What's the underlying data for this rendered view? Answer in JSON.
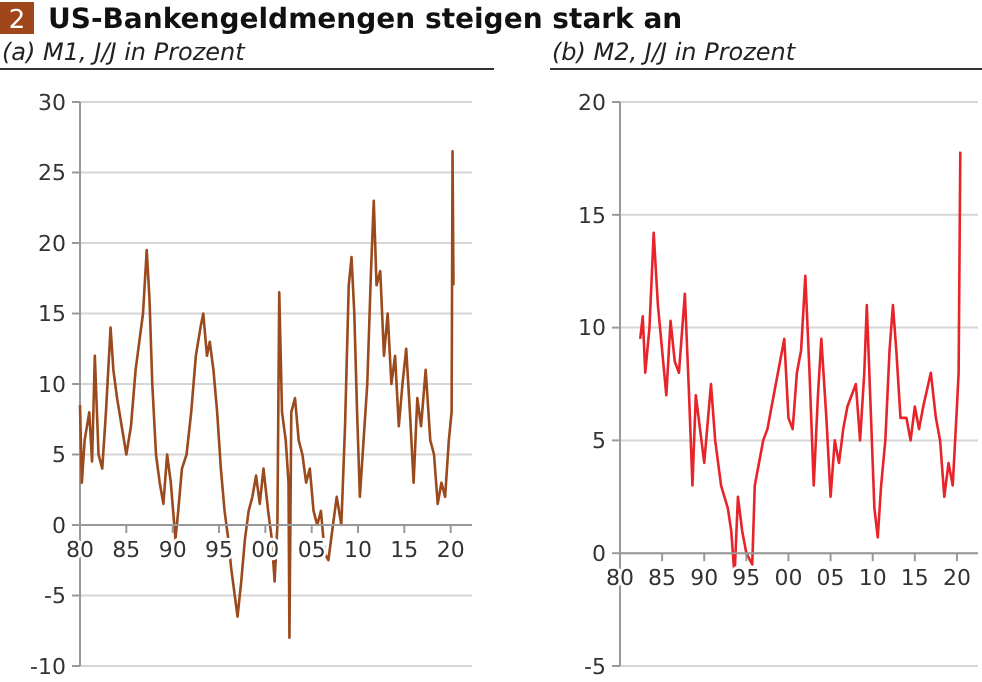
{
  "chart_data": [
    {
      "type": "line",
      "title": "US-Bankengeldmengen steigen stark an",
      "subtitle": "(a) M1, J/J in Prozent",
      "annotations": [
        "2"
      ],
      "grid": "y",
      "xlim": [
        1980,
        2022.3
      ],
      "xticks": [
        {
          "value": 1980,
          "label": "80"
        },
        {
          "value": 1985,
          "label": "85"
        },
        {
          "value": 1990,
          "label": "90"
        },
        {
          "value": 1995,
          "label": "95"
        },
        {
          "value": 2000,
          "label": "00"
        },
        {
          "value": 2005,
          "label": "05"
        },
        {
          "value": 2010,
          "label": "10"
        },
        {
          "value": 2015,
          "label": "15"
        },
        {
          "value": 2020,
          "label": "20"
        }
      ],
      "ylim": [
        -10,
        30
      ],
      "yticks": [
        -10,
        -5,
        0,
        5,
        10,
        15,
        20,
        25,
        30
      ],
      "series": [
        {
          "color": "#9a4a1c",
          "x": [
            1980,
            1980.2,
            1980.5,
            1981,
            1981.3,
            1981.6,
            1982,
            1982.4,
            1982.8,
            1983.3,
            1983.6,
            1984,
            1984.5,
            1985,
            1985.5,
            1986,
            1986.4,
            1986.8,
            1987.2,
            1987.5,
            1987.8,
            1988.2,
            1988.6,
            1989,
            1989.4,
            1989.8,
            1990.3,
            1990.6,
            1991,
            1991.5,
            1992,
            1992.5,
            1993,
            1993.3,
            1993.7,
            1994,
            1994.4,
            1994.8,
            1995.2,
            1995.6,
            1996,
            1996.3,
            1996.7,
            1997,
            1997.4,
            1997.8,
            1998.2,
            1998.6,
            1999,
            1999.4,
            1999.8,
            2000.3,
            2000.7,
            2001,
            2001.3,
            2001.5,
            2001.8,
            2002.2,
            2002.5,
            2002.6,
            2002.8,
            2003.2,
            2003.6,
            2004,
            2004.4,
            2004.8,
            2005.2,
            2005.6,
            2006,
            2006.4,
            2006.8,
            2007.3,
            2007.7,
            2008.2,
            2008.6,
            2009,
            2009.3,
            2009.6,
            2009.9,
            2010.2,
            2010.6,
            2011,
            2011.4,
            2011.7,
            2012,
            2012.4,
            2012.8,
            2013.2,
            2013.6,
            2014,
            2014.4,
            2014.8,
            2015.2,
            2015.6,
            2016,
            2016.4,
            2016.8,
            2017.3,
            2017.8,
            2018.2,
            2018.6,
            2019,
            2019.4,
            2019.8,
            2020.1,
            2020.2,
            2020.3
          ],
          "values": [
            8.5,
            3,
            6,
            8,
            4.5,
            12,
            5,
            4,
            8,
            14,
            11,
            9,
            7,
            5,
            7,
            11,
            13,
            15,
            19.5,
            16,
            10,
            5,
            3,
            1.5,
            5,
            3,
            -1,
            1,
            4,
            5,
            8,
            12,
            14,
            15,
            12,
            13,
            11,
            8,
            4,
            1,
            -1,
            -3,
            -5,
            -6.5,
            -4,
            -1,
            1,
            2,
            3.5,
            1.5,
            4,
            1,
            -1,
            -4,
            0,
            16.5,
            8,
            6,
            3,
            -8,
            8,
            9,
            6,
            5,
            3,
            4,
            1,
            0,
            1,
            -2,
            -2.5,
            0,
            2,
            0,
            7,
            17,
            19,
            15,
            8,
            2,
            6,
            10,
            18,
            23,
            17,
            18,
            12,
            15,
            10,
            12,
            7,
            10,
            12.5,
            8,
            3,
            9,
            7,
            11,
            6,
            5,
            1.5,
            3,
            2,
            6,
            8,
            26.5,
            17
          ]
        }
      ]
    },
    {
      "type": "line",
      "subtitle": "(b) M2, J/J in Prozent",
      "grid": "y",
      "xlim": [
        1980,
        2022.5
      ],
      "xticks": [
        {
          "value": 1980,
          "label": "80"
        },
        {
          "value": 1985,
          "label": "85"
        },
        {
          "value": 1990,
          "label": "90"
        },
        {
          "value": 1995,
          "label": "95"
        },
        {
          "value": 2000,
          "label": "00"
        },
        {
          "value": 2005,
          "label": "05"
        },
        {
          "value": 2010,
          "label": "10"
        },
        {
          "value": 2015,
          "label": "15"
        },
        {
          "value": 2020,
          "label": "20"
        }
      ],
      "ylim": [
        -5,
        20
      ],
      "yticks": [
        -5,
        0,
        5,
        10,
        15,
        20
      ],
      "series": [
        {
          "color": "#e8242b",
          "x": [
            1982.4,
            1982.7,
            1983,
            1983.5,
            1984,
            1984.5,
            1985,
            1985.5,
            1986,
            1986.5,
            1987,
            1987.7,
            1988.2,
            1988.6,
            1989,
            1989.5,
            1990,
            1990.8,
            1991.3,
            1992,
            1992.8,
            1993.2,
            1993.6,
            1994,
            1994.5,
            1995,
            1995.7,
            1996,
            1996.5,
            1997,
            1997.5,
            1998,
            1998.5,
            1999,
            1999.5,
            2000,
            2000.5,
            2001,
            2001.5,
            2002,
            2002.5,
            2003,
            2003.5,
            2003.9,
            2004.5,
            2005,
            2005.5,
            2006,
            2006.5,
            2007,
            2008,
            2008.5,
            2009,
            2009.3,
            2009.7,
            2010.2,
            2010.6,
            2011,
            2011.5,
            2012,
            2012.4,
            2012.8,
            2013.3,
            2014,
            2014.5,
            2015,
            2015.5,
            2016,
            2016.9,
            2017.5,
            2018,
            2018.5,
            2019,
            2019.5,
            2020,
            2020.2,
            2020.4
          ],
          "values": [
            9.5,
            10.5,
            8,
            10,
            14.2,
            11,
            9,
            7,
            10.3,
            8.5,
            8,
            11.5,
            7,
            3,
            7,
            5.5,
            4,
            7.5,
            5,
            3,
            2,
            1,
            -1,
            2.5,
            1,
            0,
            -0.5,
            3,
            4,
            5,
            5.5,
            6.5,
            7.5,
            8.5,
            9.5,
            6,
            5.5,
            8,
            9,
            12.3,
            8,
            3,
            7,
            9.5,
            6,
            2.5,
            5,
            4,
            5.5,
            6.5,
            7.5,
            5,
            8,
            11,
            7,
            2,
            0.7,
            3,
            5,
            9,
            11,
            9,
            6,
            6,
            5,
            6.5,
            5.5,
            6.5,
            8,
            6,
            5,
            2.5,
            4,
            3,
            6.5,
            8,
            17.8
          ]
        }
      ]
    }
  ]
}
